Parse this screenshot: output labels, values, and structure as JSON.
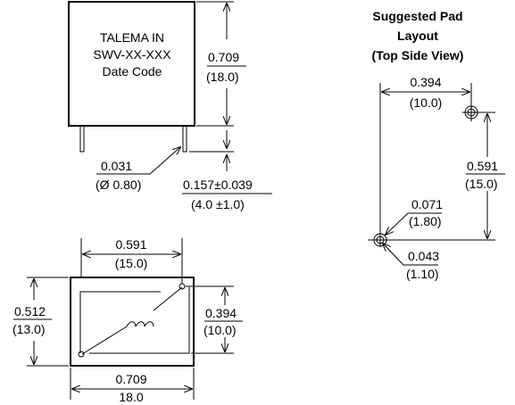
{
  "front_view": {
    "label_line1": "TALEMA IN",
    "label_line2": "SWV-XX-XXX",
    "label_line3": "Date Code",
    "height_in": "0.709",
    "height_mm": "(18.0)",
    "pin_dia_in": "0.031",
    "pin_dia_mm": "(Ø 0.80)",
    "pin_len_in": "0.157±0.039",
    "pin_len_mm": "(4.0 ±1.0)"
  },
  "bottom_view": {
    "pin_span_in": "0.591",
    "pin_span_mm": "(15.0)",
    "depth_in": "0.512",
    "depth_mm": "(13.0)",
    "pin_pitch_in": "0.394",
    "pin_pitch_mm": "(10.0)",
    "length_in": "0.709",
    "length_mm": "18.0"
  },
  "pad_layout": {
    "title_line1": "Suggested Pad",
    "title_line2": "Layout",
    "title_line3": "(Top Side View)",
    "pitch_x_in": "0.394",
    "pitch_x_mm": "(10.0)",
    "pitch_y_in": "0.591",
    "pitch_y_mm": "(15.0)",
    "pad_dia_in": "0.071",
    "pad_dia_mm": "(1.80)",
    "hole_dia_in": "0.043",
    "hole_dia_mm": "(1.10)"
  }
}
